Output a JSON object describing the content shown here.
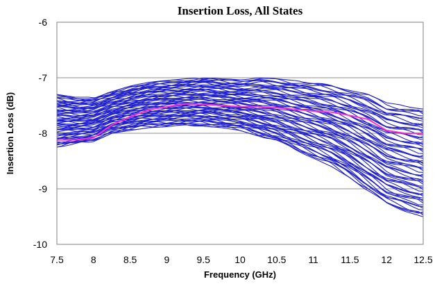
{
  "chart_data": {
    "type": "line",
    "title": "Insertion Loss, All States",
    "xlabel": "Frequency (GHz)",
    "ylabel": "Insertion Loss (dB)",
    "xlim": [
      7.5,
      12.5
    ],
    "ylim": [
      -10,
      -6
    ],
    "x_ticks": [
      "7.5",
      "8",
      "8.5",
      "9",
      "9.5",
      "10",
      "10.5",
      "11",
      "11.5",
      "12",
      "12.5"
    ],
    "y_ticks": [
      "-6",
      "-7",
      "-8",
      "-9",
      "-10"
    ],
    "grid": "horizontal",
    "legend": "none",
    "series_count": 64,
    "x": [
      7.5,
      7.75,
      8.0,
      8.25,
      8.5,
      8.75,
      9.0,
      9.25,
      9.5,
      9.75,
      10.0,
      10.25,
      10.5,
      10.75,
      11.0,
      11.25,
      11.5,
      11.75,
      12.0,
      12.25,
      12.5
    ],
    "envelope": {
      "upper": [
        -7.3,
        -7.35,
        -7.35,
        -7.25,
        -7.15,
        -7.08,
        -7.05,
        -7.02,
        -7.0,
        -7.02,
        -7.03,
        -7.0,
        -7.02,
        -7.05,
        -7.08,
        -7.12,
        -7.2,
        -7.3,
        -7.45,
        -7.5,
        -7.55
      ],
      "lower": [
        -8.25,
        -8.2,
        -8.15,
        -8.0,
        -7.95,
        -7.9,
        -7.88,
        -7.87,
        -7.87,
        -7.9,
        -7.95,
        -8.05,
        -8.15,
        -8.3,
        -8.45,
        -8.6,
        -8.8,
        -9.05,
        -9.3,
        -9.42,
        -9.52
      ]
    },
    "highlight_series": {
      "values": [
        -8.12,
        -8.12,
        -8.08,
        -7.85,
        -7.7,
        -7.58,
        -7.52,
        -7.47,
        -7.48,
        -7.5,
        -7.52,
        -7.52,
        -7.54,
        -7.57,
        -7.6,
        -7.62,
        -7.68,
        -7.75,
        -7.95,
        -8.0,
        -8.0
      ]
    },
    "colors": {
      "series": "#1f1fcc",
      "highlight": "#ff33cc",
      "grid": "#8c8c8c",
      "frame": "#808080"
    }
  }
}
